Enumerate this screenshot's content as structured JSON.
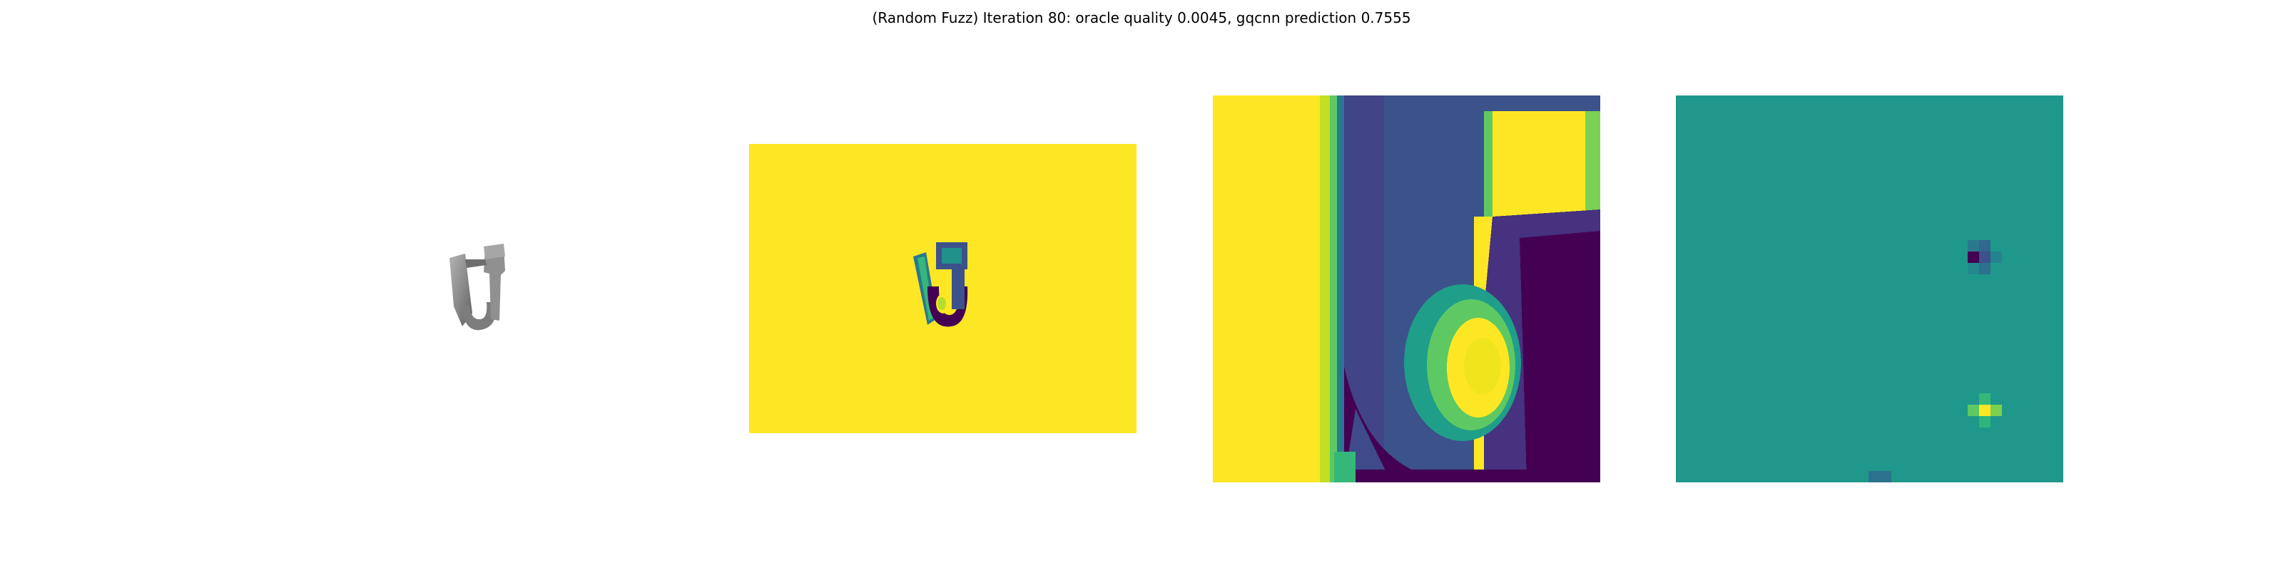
{
  "figure": {
    "title": "(Random Fuzz) Iteration 80: oracle quality 0.0045, gqcnn prediction 0.7555"
  },
  "colors": {
    "background": "#ffffff",
    "viridis_yellow": "#fde725",
    "viridis_teal": "#21918c",
    "viridis_green": "#5ec962",
    "viridis_blue": "#3b528b",
    "viridis_indigo": "#443983",
    "viridis_purple": "#440154",
    "render_gray": "#8a8a8a"
  }
}
